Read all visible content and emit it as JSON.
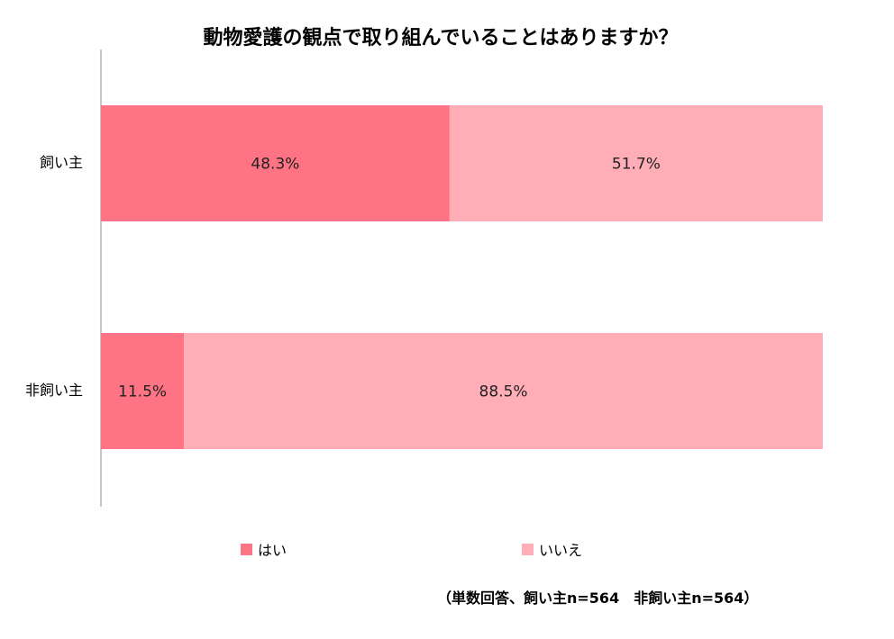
{
  "chart_data": {
    "type": "bar",
    "orientation": "horizontal",
    "stacked": true,
    "title": "動物愛護の観点で取り組んでいることはありますか？",
    "categories": [
      "飼い主",
      "非飼い主"
    ],
    "series": [
      {
        "name": "はい",
        "values": [
          48.3,
          11.5
        ],
        "labels": [
          "48.3%",
          "11.5%"
        ],
        "color": "#ff7484"
      },
      {
        "name": "いいえ",
        "values": [
          51.7,
          88.5
        ],
        "labels": [
          "51.7%",
          "88.5%"
        ],
        "color": "#ffaeb8"
      }
    ],
    "xlim": [
      0,
      100
    ],
    "grid": false,
    "legend_position": "bottom",
    "note": "（単数回答、飼い主n=564　非飼い主n=564）"
  }
}
